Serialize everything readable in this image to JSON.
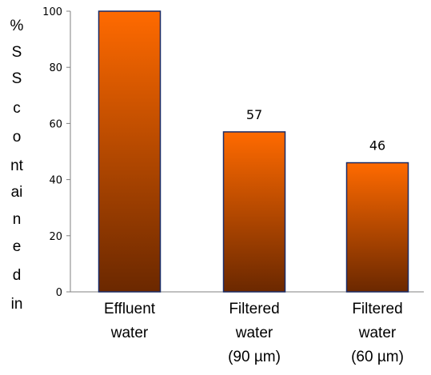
{
  "chart_data": {
    "type": "bar",
    "categories": [
      [
        "Effluent",
        "water"
      ],
      [
        "Filtered",
        "water",
        "(90 µm)"
      ],
      [
        "Filtered",
        "water",
        "(60 µm)"
      ]
    ],
    "values": [
      100,
      57,
      46
    ],
    "data_labels": [
      "",
      "57",
      "46"
    ],
    "ylabel": [
      "%",
      "S",
      "S",
      "c",
      "o",
      "nt",
      "ai",
      "n",
      "e",
      "d",
      "in"
    ],
    "ylim": [
      0,
      100
    ],
    "yticks": [
      "0",
      "20",
      "40",
      "60",
      "80",
      "100"
    ],
    "grid": false,
    "colors": {
      "bar_top": "#ff6a00",
      "bar_bottom": "#6b2800",
      "bar_stroke": "#1a2b66",
      "axis": "#808080"
    }
  }
}
